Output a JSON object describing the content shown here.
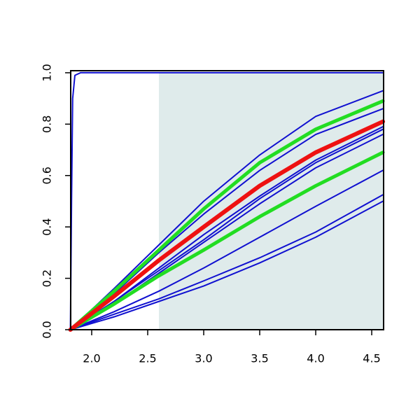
{
  "chart_data": {
    "type": "line",
    "xlim": [
      1.8125,
      4.606
    ],
    "ylim": [
      0,
      1.008
    ],
    "xticks": [
      {
        "value": 2,
        "label": "2.0"
      },
      {
        "value": 2.5,
        "label": "2.5"
      },
      {
        "value": 3,
        "label": "3.0"
      },
      {
        "value": 3.5,
        "label": "3.5"
      },
      {
        "value": 4,
        "label": "4.0"
      },
      {
        "value": 4.5,
        "label": "4.5"
      }
    ],
    "yticks": [
      {
        "value": 0,
        "label": "0.0"
      },
      {
        "value": 0.2,
        "label": "0.2"
      },
      {
        "value": 0.4,
        "label": "0.4"
      },
      {
        "value": 0.6,
        "label": "0.6"
      },
      {
        "value": 0.8,
        "label": "0.8"
      },
      {
        "value": 1,
        "label": "1.0"
      }
    ],
    "shade": {
      "xlim": [
        2.6,
        4.606
      ],
      "ylim": [
        0,
        1
      ],
      "color": "#dfebeb"
    },
    "series": [
      {
        "color": "#1010d0",
        "line_width": 2,
        "x": [
          1.81,
          2.2,
          2.6,
          3.0,
          3.5,
          4.0,
          4.6
        ],
        "values": [
          0,
          0.16,
          0.33,
          0.5,
          0.68,
          0.83,
          0.93
        ]
      },
      {
        "color": "#1010d0",
        "line_width": 2,
        "x": [
          1.81,
          2.2,
          2.6,
          3.0,
          3.5,
          4.0,
          4.6
        ],
        "values": [
          0,
          0.14,
          0.3,
          0.45,
          0.62,
          0.76,
          0.86
        ]
      },
      {
        "color": "#1010d0",
        "line_width": 2,
        "x": [
          1.81,
          2.2,
          2.6,
          3.0,
          3.5,
          4.0,
          4.6
        ],
        "values": [
          0,
          0.11,
          0.24,
          0.37,
          0.52,
          0.66,
          0.79
        ]
      },
      {
        "color": "#1010d0",
        "line_width": 2,
        "x": [
          1.81,
          2.2,
          2.6,
          3.0,
          3.5,
          4.0,
          4.6
        ],
        "values": [
          0,
          0.11,
          0.23,
          0.35,
          0.51,
          0.65,
          0.78
        ]
      },
      {
        "color": "#1010d0",
        "line_width": 2,
        "x": [
          1.81,
          2.2,
          2.6,
          3.0,
          3.5,
          4.0,
          4.6
        ],
        "values": [
          0,
          0.1,
          0.22,
          0.34,
          0.49,
          0.63,
          0.76
        ]
      },
      {
        "color": "#1010d0",
        "line_width": 2,
        "x": [
          1.81,
          2.2,
          2.6,
          3.0,
          3.5,
          4.0,
          4.6
        ],
        "values": [
          0,
          0.07,
          0.15,
          0.24,
          0.36,
          0.48,
          0.62
        ]
      },
      {
        "color": "#1010d0",
        "line_width": 2,
        "x": [
          1.81,
          2.2,
          2.6,
          3.0,
          3.5,
          4.0,
          4.6
        ],
        "values": [
          0,
          0.06,
          0.12,
          0.19,
          0.28,
          0.38,
          0.525
        ]
      },
      {
        "color": "#1010d0",
        "line_width": 2,
        "x": [
          1.81,
          2.2,
          2.6,
          3.0,
          3.5,
          4.0,
          4.6
        ],
        "values": [
          0,
          0.05,
          0.11,
          0.17,
          0.26,
          0.36,
          0.5
        ]
      },
      {
        "color": "#1010d0",
        "line_width": 2,
        "x": [
          1.81,
          1.82,
          1.83,
          1.85,
          1.9,
          4.6
        ],
        "values": [
          0,
          0.5,
          0.9,
          0.99,
          1,
          1
        ]
      },
      {
        "color": "#22dd22",
        "line_width": 5,
        "x": [
          1.81,
          2.2,
          2.6,
          3.0,
          3.5,
          4.0,
          4.6
        ],
        "values": [
          0,
          0.15,
          0.31,
          0.47,
          0.65,
          0.78,
          0.89
        ]
      },
      {
        "color": "#22dd22",
        "line_width": 5,
        "x": [
          1.81,
          2.2,
          2.6,
          3.0,
          3.5,
          4.0,
          4.6
        ],
        "values": [
          0,
          0.1,
          0.21,
          0.31,
          0.44,
          0.56,
          0.69
        ]
      },
      {
        "color": "#ee1111",
        "line_width": 6,
        "x": [
          1.81,
          2.2,
          2.6,
          3.0,
          3.5,
          4.0,
          4.6
        ],
        "values": [
          0,
          0.13,
          0.27,
          0.4,
          0.56,
          0.69,
          0.81
        ]
      }
    ]
  }
}
